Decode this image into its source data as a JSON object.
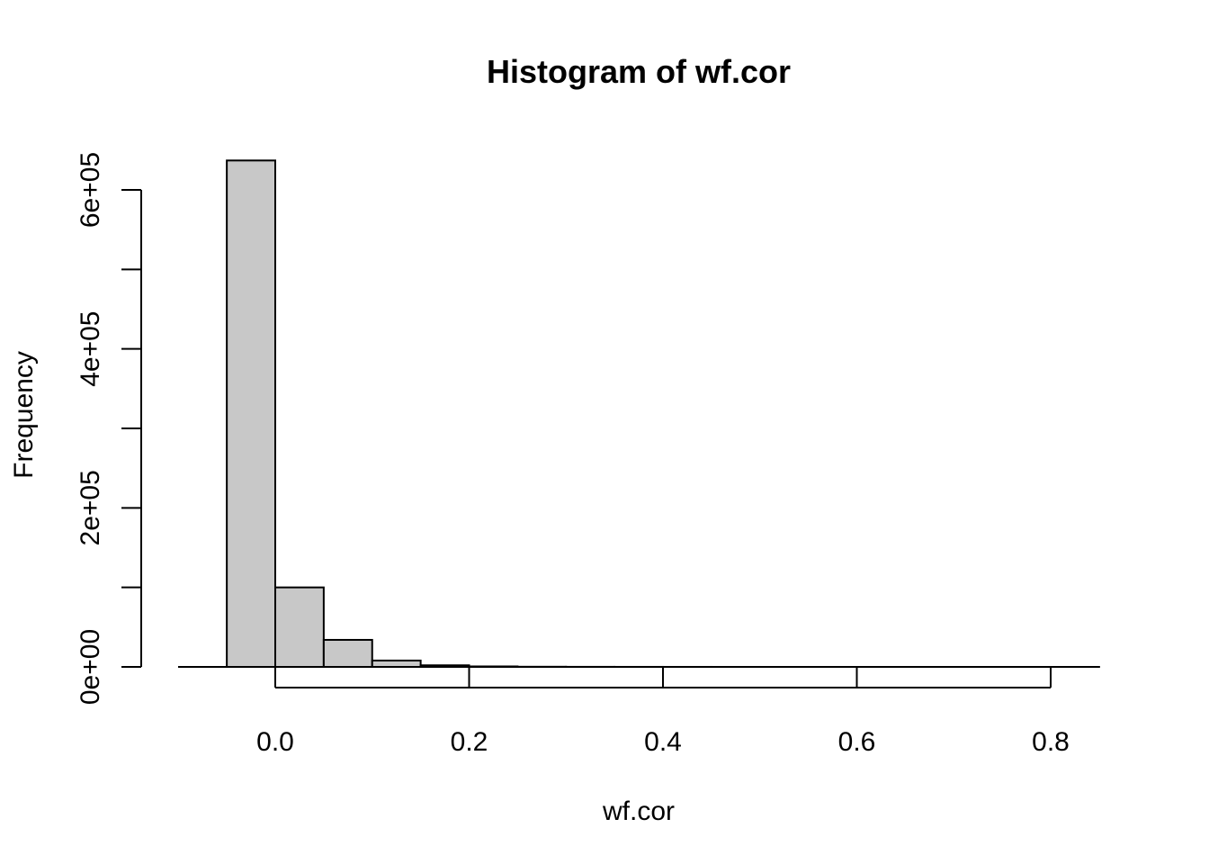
{
  "chart_data": {
    "type": "bar",
    "title": "Histogram of wf.cor",
    "xlabel": "wf.cor",
    "ylabel": "Frequency",
    "bin_edges": [
      -0.05,
      0.0,
      0.05,
      0.1,
      0.15,
      0.2,
      0.25,
      0.3,
      0.35,
      0.4,
      0.45,
      0.5,
      0.55,
      0.6,
      0.65,
      0.7,
      0.75,
      0.8,
      0.85
    ],
    "values": [
      637000,
      100000,
      34000,
      8000,
      2000,
      600,
      200,
      80,
      40,
      20,
      10,
      5,
      3,
      2,
      1,
      1,
      1,
      1
    ],
    "xlim": [
      -0.1,
      0.85
    ],
    "ylim": [
      0,
      637000
    ],
    "x_ticks": [
      0.0,
      0.2,
      0.4,
      0.6,
      0.8
    ],
    "x_tick_labels": [
      "0.0",
      "0.2",
      "0.4",
      "0.6",
      "0.8"
    ],
    "y_ticks": [
      0,
      100000,
      200000,
      300000,
      400000,
      500000,
      600000
    ],
    "y_tick_labels": [
      "0e+00",
      "",
      "2e+05",
      "",
      "4e+05",
      "",
      "6e+05"
    ],
    "bar_color": "#c8c8c8",
    "grid": false,
    "legend": "none"
  }
}
